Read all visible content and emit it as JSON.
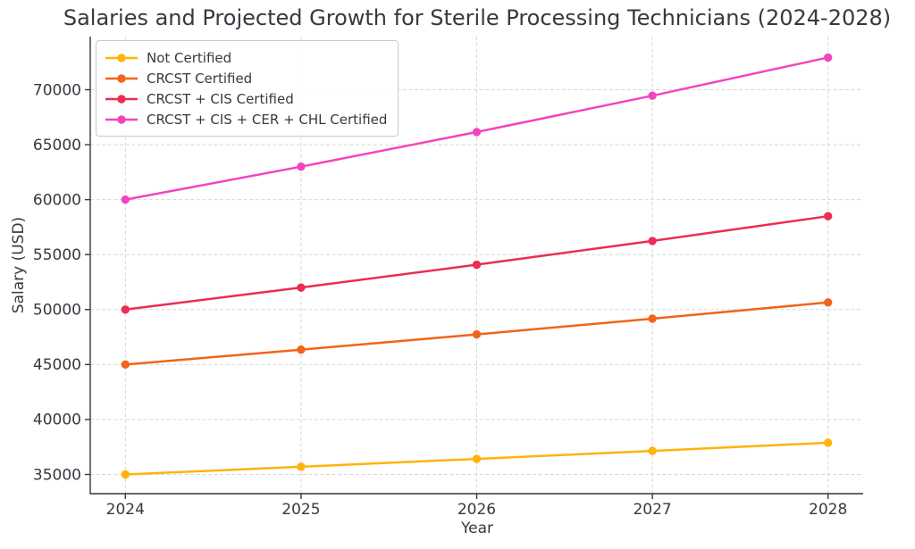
{
  "figure": {
    "background": "#ffffff",
    "text_color": "#343a40",
    "grid_color": "#d7d7d7",
    "spine_color": "#32373c"
  },
  "chart_data": {
    "type": "line",
    "title": "Salaries and Projected Growth for Sterile Processing Technicians (2024-2028)",
    "xlabel": "Year",
    "ylabel": "Salary (USD)",
    "x": [
      2024,
      2025,
      2026,
      2027,
      2028
    ],
    "x_tick_labels": [
      "2024",
      "2025",
      "2026",
      "2027",
      "2028"
    ],
    "y_ticks": [
      35000,
      40000,
      45000,
      50000,
      55000,
      60000,
      65000,
      70000
    ],
    "xlim": [
      2023.8,
      2028.2
    ],
    "ylim": [
      33254,
      74831
    ],
    "grid": true,
    "grid_style": "dashed",
    "legend_position": "upper-left",
    "series": [
      {
        "name": "Not Certified",
        "color": "#FFB30D",
        "values": [
          35000,
          35700,
          36414,
          37142,
          37885
        ]
      },
      {
        "name": "CRCST Certified",
        "color": "#F26419",
        "values": [
          45000,
          46350,
          47741,
          49173,
          50648
        ]
      },
      {
        "name": "CRCST + CIS Certified",
        "color": "#EB2D55",
        "values": [
          50000,
          52000,
          54080,
          56243,
          58493
        ]
      },
      {
        "name": "CRCST + CIS + CER + CHL Certified",
        "color": "#F244C0",
        "values": [
          60000,
          63000,
          66150,
          69458,
          72930
        ]
      }
    ]
  }
}
